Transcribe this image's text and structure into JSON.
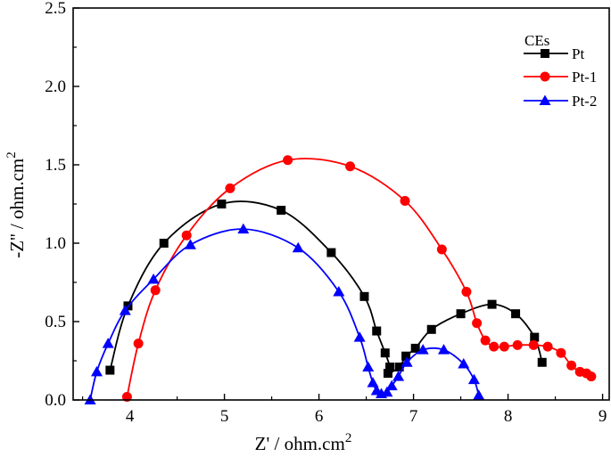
{
  "chart_data": {
    "type": "line",
    "xlabel": "Z' / ohm.cm",
    "xlabel_sup": "2",
    "ylabel": "-Z'' / ohm.cm",
    "ylabel_sup": "2",
    "xlim": [
      3.4,
      9.07
    ],
    "ylim": [
      0,
      2.5
    ],
    "xticks": [
      "4",
      "5",
      "6",
      "7",
      "8",
      "9"
    ],
    "yticks": [
      "0.0",
      "0.5",
      "1.0",
      "1.5",
      "2.0",
      "2.5"
    ],
    "grid": false,
    "legend": {
      "title": "CEs",
      "placement": "top-right"
    },
    "series": [
      {
        "name": "Pt",
        "color": "#000000",
        "marker": "square",
        "x": [
          3.79,
          3.98,
          4.36,
          4.97,
          5.6,
          6.13,
          6.48,
          6.61,
          6.7,
          6.75,
          6.73,
          6.85,
          6.92,
          7.02,
          7.19,
          7.5,
          7.83,
          8.08,
          8.28,
          8.36
        ],
        "y": [
          0.19,
          0.6,
          1.0,
          1.25,
          1.21,
          0.94,
          0.66,
          0.44,
          0.3,
          0.21,
          0.17,
          0.21,
          0.28,
          0.33,
          0.45,
          0.55,
          0.61,
          0.55,
          0.4,
          0.24
        ]
      },
      {
        "name": "Pt-1",
        "color": "#ff0000",
        "marker": "circle",
        "x": [
          3.97,
          4.09,
          4.27,
          4.6,
          5.06,
          5.67,
          6.33,
          6.91,
          7.3,
          7.56,
          7.67,
          7.76,
          7.85,
          7.96,
          8.1,
          8.27,
          8.42,
          8.56,
          8.67,
          8.76,
          8.83,
          8.88
        ],
        "y": [
          0.02,
          0.36,
          0.7,
          1.05,
          1.35,
          1.53,
          1.49,
          1.27,
          0.96,
          0.69,
          0.49,
          0.38,
          0.34,
          0.34,
          0.35,
          0.35,
          0.34,
          0.3,
          0.22,
          0.18,
          0.17,
          0.15
        ]
      },
      {
        "name": "Pt-2",
        "color": "#0000ff",
        "marker": "triangle",
        "x": [
          3.58,
          3.65,
          3.77,
          3.95,
          4.25,
          4.64,
          5.2,
          5.78,
          6.21,
          6.43,
          6.52,
          6.57,
          6.61,
          6.66,
          6.72,
          6.77,
          6.84,
          6.93,
          7.1,
          7.32,
          7.53,
          7.64,
          7.69
        ],
        "y": [
          0.0,
          0.18,
          0.36,
          0.57,
          0.77,
          0.99,
          1.09,
          0.97,
          0.69,
          0.4,
          0.21,
          0.11,
          0.06,
          0.04,
          0.05,
          0.09,
          0.15,
          0.24,
          0.32,
          0.32,
          0.23,
          0.13,
          0.03
        ]
      }
    ]
  }
}
